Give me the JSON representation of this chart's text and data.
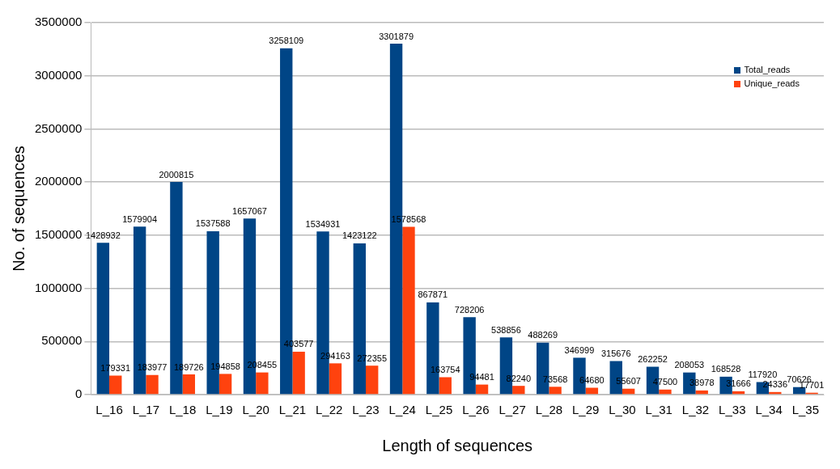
{
  "chart_data": {
    "type": "bar",
    "xlabel": "Length of sequences",
    "ylabel": "No. of sequences",
    "categories": [
      "L_16",
      "L_17",
      "L_18",
      "L_19",
      "L_20",
      "L_21",
      "L_22",
      "L_23",
      "L_24",
      "L_25",
      "L_26",
      "L_27",
      "L_28",
      "L_29",
      "L_30",
      "L_31",
      "L_32",
      "L_33",
      "L_34",
      "L_35"
    ],
    "series": [
      {
        "name": "Total_reads",
        "color": "#004586",
        "values": [
          1428932,
          1579904,
          2000815,
          1537588,
          1657067,
          3258109,
          1534931,
          1423122,
          3301879,
          867871,
          728206,
          538856,
          488269,
          346999,
          315676,
          262252,
          208053,
          168528,
          117920,
          70626
        ]
      },
      {
        "name": "Unique_reads",
        "color": "#ff420e",
        "values": [
          179331,
          183977,
          189726,
          194858,
          208455,
          403577,
          294163,
          272355,
          1578568,
          163754,
          94481,
          82240,
          73568,
          64680,
          55607,
          47500,
          38978,
          31666,
          24336,
          17701
        ]
      }
    ],
    "ylim": [
      0,
      3500000
    ],
    "yticks": [
      0,
      500000,
      1000000,
      1500000,
      2000000,
      2500000,
      3000000,
      3500000
    ],
    "grid": "y",
    "legend": "top right",
    "data_labels": true
  }
}
